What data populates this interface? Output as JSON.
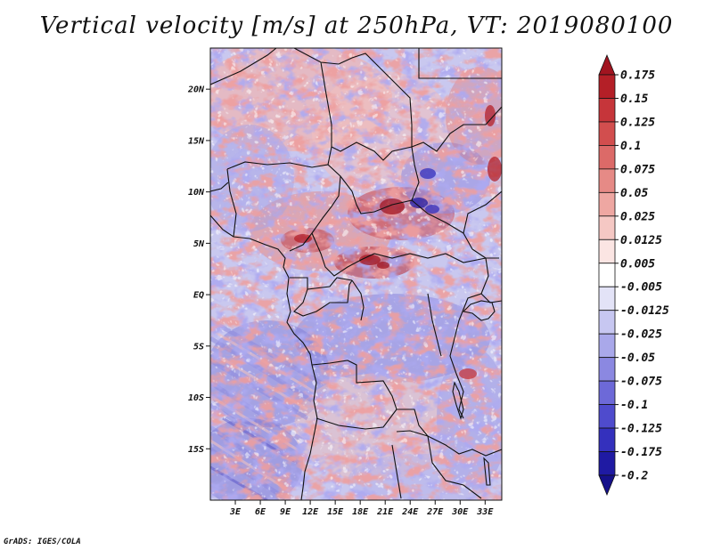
{
  "title": "Vertical velocity [m/s] at 250hPa, VT: 2019080100",
  "credit": "GrADS: IGES/COLA",
  "map": {
    "lon_range": [
      0,
      35
    ],
    "lat_range": [
      -20,
      24
    ],
    "lat_ticks": [
      {
        "value": 20,
        "label": "20N"
      },
      {
        "value": 15,
        "label": "15N"
      },
      {
        "value": 10,
        "label": "10N"
      },
      {
        "value": 5,
        "label": "5N"
      },
      {
        "value": 0,
        "label": "EQ"
      },
      {
        "value": -5,
        "label": "5S"
      },
      {
        "value": -10,
        "label": "10S"
      },
      {
        "value": -15,
        "label": "15S"
      }
    ],
    "lon_ticks": [
      {
        "value": 3,
        "label": "3E"
      },
      {
        "value": 6,
        "label": "6E"
      },
      {
        "value": 9,
        "label": "9E"
      },
      {
        "value": 12,
        "label": "12E"
      },
      {
        "value": 15,
        "label": "15E"
      },
      {
        "value": 18,
        "label": "18E"
      },
      {
        "value": 21,
        "label": "21E"
      },
      {
        "value": 24,
        "label": "24E"
      },
      {
        "value": 27,
        "label": "27E"
      },
      {
        "value": 30,
        "label": "30E"
      },
      {
        "value": 33,
        "label": "33E"
      }
    ]
  },
  "colorbar": {
    "levels": [
      "0.175",
      "0.15",
      "0.125",
      "0.1",
      "0.075",
      "0.05",
      "0.025",
      "0.0125",
      "0.005",
      "-0.005",
      "-0.0125",
      "-0.025",
      "-0.05",
      "-0.075",
      "-0.1",
      "-0.125",
      "-0.175",
      "-0.2"
    ],
    "colors": [
      "#a11420",
      "#b41f27",
      "#c6353a",
      "#d24e4e",
      "#dc6a68",
      "#e68a86",
      "#eea7a2",
      "#f5c8c4",
      "#fbe5e3",
      "#ffffff",
      "#e3e3f7",
      "#c7c7f1",
      "#a9a8ea",
      "#8b88e1",
      "#6d69d8",
      "#4f4bcd",
      "#3430bd",
      "#1f1aa3",
      "#15108a"
    ]
  }
}
